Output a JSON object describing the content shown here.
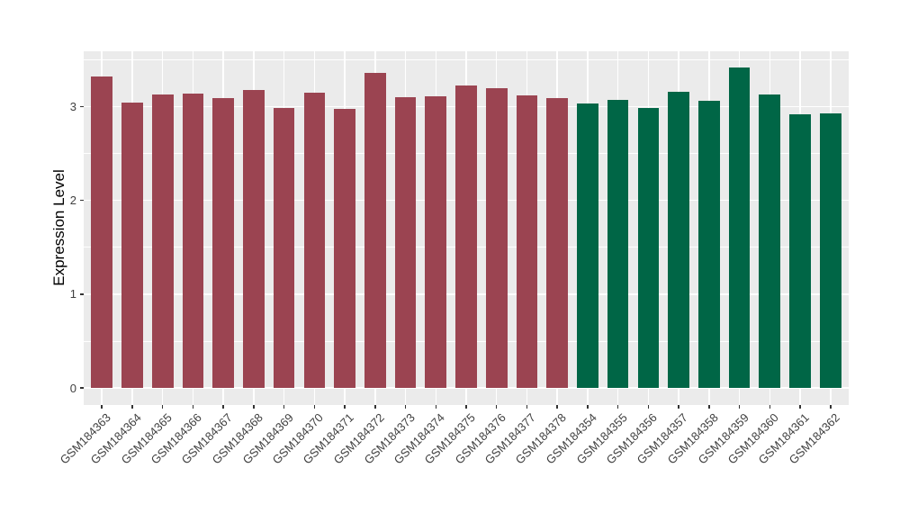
{
  "colors": {
    "panel_background": "#EBEBEB",
    "gridline": "#FFFFFF",
    "axis_text": "#404040",
    "axis_title_text": "#000000",
    "tick_mark": "#333333",
    "group1_bar": "#9B4451",
    "group2_bar": "#006646"
  },
  "chart_data": {
    "type": "bar",
    "title": "",
    "xlabel": "",
    "ylabel": "Expression Level",
    "legend": "none",
    "grid": "on",
    "yticks": [
      0,
      1,
      2,
      3
    ],
    "yticks_minor": [
      0.5,
      1.5,
      2.5,
      3.5
    ],
    "ylim_data": [
      0,
      3.42
    ],
    "ylim_panel": [
      -0.18,
      3.59
    ],
    "bar_width_fraction": 0.7,
    "categories": [
      "GSM184363",
      "GSM184364",
      "GSM184365",
      "GSM184366",
      "GSM184367",
      "GSM184368",
      "GSM184369",
      "GSM184370",
      "GSM184371",
      "GSM184372",
      "GSM184373",
      "GSM184374",
      "GSM184375",
      "GSM184376",
      "GSM184377",
      "GSM184378",
      "GSM184354",
      "GSM184355",
      "GSM184356",
      "GSM184357",
      "GSM184358",
      "GSM184359",
      "GSM184360",
      "GSM184361",
      "GSM184362"
    ],
    "values": [
      3.32,
      3.04,
      3.13,
      3.14,
      3.09,
      3.18,
      2.99,
      3.15,
      2.98,
      3.36,
      3.1,
      3.11,
      3.23,
      3.2,
      3.12,
      3.09,
      3.03,
      3.07,
      2.99,
      3.16,
      3.06,
      3.42,
      3.13,
      2.92,
      2.93
    ],
    "color_groups": [
      {
        "name": "group-1",
        "start_index": 0,
        "end_index": 15,
        "color": "#9B4451"
      },
      {
        "name": "group-2",
        "start_index": 16,
        "end_index": 24,
        "color": "#006646"
      }
    ]
  }
}
